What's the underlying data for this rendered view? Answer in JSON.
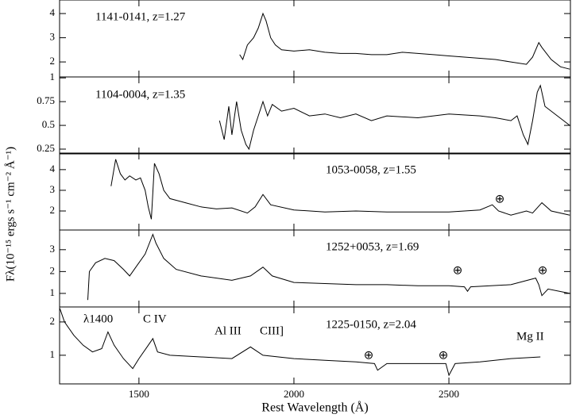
{
  "chart_data": [
    {
      "type": "line",
      "title": "1141-0141, z=1.27",
      "x": [
        1825,
        1835,
        1850,
        1870,
        1885,
        1900,
        1910,
        1925,
        1940,
        1960,
        2000,
        2050,
        2100,
        2150,
        2200,
        2250,
        2300,
        2350,
        2400,
        2450,
        2500,
        2550,
        2600,
        2650,
        2700,
        2750,
        2770,
        2790,
        2800,
        2830,
        2860,
        2890
      ],
      "values": [
        2.3,
        2.1,
        2.7,
        3.0,
        3.4,
        4.0,
        3.7,
        3.0,
        2.7,
        2.5,
        2.45,
        2.5,
        2.4,
        2.35,
        2.35,
        2.3,
        2.3,
        2.4,
        2.35,
        2.3,
        2.25,
        2.2,
        2.15,
        2.1,
        2.0,
        1.9,
        2.2,
        2.8,
        2.6,
        2.1,
        1.8,
        1.7
      ],
      "xlim": [
        1244,
        2892
      ],
      "xticks": [
        1500,
        2000,
        2500
      ],
      "ylim": [
        1.38,
        4.56
      ],
      "yticks": [
        2,
        3,
        4
      ],
      "color": "#000000",
      "annotations": []
    },
    {
      "type": "line",
      "title": "1104-0004, z=1.35",
      "x": [
        1760,
        1775,
        1790,
        1800,
        1815,
        1830,
        1845,
        1855,
        1870,
        1885,
        1900,
        1915,
        1930,
        1960,
        2000,
        2050,
        2100,
        2150,
        2200,
        2250,
        2300,
        2400,
        2500,
        2600,
        2650,
        2700,
        2720,
        2740,
        2755,
        2770,
        2785,
        2795,
        2810,
        2850,
        2890
      ],
      "values": [
        0.55,
        0.35,
        0.7,
        0.4,
        0.75,
        0.45,
        0.3,
        0.25,
        0.45,
        0.6,
        0.75,
        0.6,
        0.72,
        0.65,
        0.68,
        0.6,
        0.62,
        0.58,
        0.62,
        0.55,
        0.6,
        0.58,
        0.62,
        0.6,
        0.58,
        0.55,
        0.6,
        0.4,
        0.3,
        0.55,
        0.85,
        0.92,
        0.7,
        0.6,
        0.5
      ],
      "xlim": [
        1244,
        2892
      ],
      "xticks": [
        1500,
        2000,
        2500
      ],
      "ylim": [
        0.2,
        1.01
      ],
      "yticks": [
        0.25,
        0.5,
        0.75,
        1
      ],
      "color": "#000000",
      "annotations": []
    },
    {
      "type": "line",
      "title": "1053-0058, z=1.55",
      "ylabel": "Fλ(10⁻¹⁵ ergs s⁻¹ cm⁻² Å⁻¹)",
      "x": [
        1410,
        1425,
        1440,
        1455,
        1470,
        1490,
        1505,
        1520,
        1530,
        1540,
        1545,
        1550,
        1565,
        1580,
        1600,
        1650,
        1700,
        1750,
        1800,
        1850,
        1875,
        1900,
        1925,
        2000,
        2100,
        2200,
        2300,
        2400,
        2500,
        2600,
        2640,
        2660,
        2700,
        2750,
        2770,
        2800,
        2830,
        2890
      ],
      "values": [
        3.2,
        4.5,
        3.8,
        3.5,
        3.7,
        3.5,
        3.6,
        3.0,
        2.2,
        1.6,
        2.9,
        4.3,
        3.8,
        3.0,
        2.6,
        2.4,
        2.2,
        2.1,
        2.15,
        1.9,
        2.2,
        2.8,
        2.3,
        2.05,
        1.95,
        2.0,
        1.95,
        1.95,
        1.95,
        2.05,
        2.3,
        2.0,
        1.8,
        2.0,
        1.9,
        2.4,
        2.0,
        1.8
      ],
      "xlim": [
        1244,
        2892
      ],
      "xticks": [
        1500,
        2000,
        2500
      ],
      "ylim": [
        1.08,
        4.8
      ],
      "yticks": [
        2,
        3,
        4
      ],
      "color": "#000000",
      "annotations": [
        "⊕"
      ]
    },
    {
      "type": "line",
      "title": "1252+0053, z=1.69",
      "x": [
        1335,
        1340,
        1360,
        1390,
        1420,
        1450,
        1470,
        1490,
        1520,
        1545,
        1555,
        1580,
        1620,
        1700,
        1800,
        1860,
        1900,
        1930,
        2000,
        2100,
        2200,
        2300,
        2400,
        2500,
        2550,
        2560,
        2570,
        2700,
        2780,
        2790,
        2800,
        2820,
        2890
      ],
      "values": [
        0.7,
        2.0,
        2.4,
        2.6,
        2.5,
        2.1,
        1.8,
        2.2,
        2.8,
        3.7,
        3.3,
        2.6,
        2.1,
        1.8,
        1.6,
        1.8,
        2.2,
        1.8,
        1.5,
        1.45,
        1.4,
        1.4,
        1.35,
        1.35,
        1.3,
        1.1,
        1.3,
        1.4,
        1.7,
        1.4,
        0.9,
        1.2,
        1.0
      ],
      "xlim": [
        1244,
        2892
      ],
      "xticks": [
        1500,
        2000,
        2500
      ],
      "ylim": [
        0.38,
        3.9
      ],
      "yticks": [
        1,
        2,
        3
      ],
      "color": "#000000",
      "annotations": [
        "⊕",
        "⊕"
      ]
    },
    {
      "type": "line",
      "title": "1225-0150, z=2.04",
      "xlabel": "Rest Wavelength (Å)",
      "x": [
        1245,
        1260,
        1290,
        1320,
        1350,
        1380,
        1400,
        1420,
        1450,
        1480,
        1500,
        1530,
        1545,
        1560,
        1600,
        1700,
        1800,
        1860,
        1900,
        2000,
        2100,
        2200,
        2260,
        2270,
        2300,
        2400,
        2490,
        2500,
        2520,
        2600,
        2700,
        2795
      ],
      "values": [
        2.4,
        2.0,
        1.6,
        1.3,
        1.1,
        1.2,
        1.7,
        1.3,
        0.9,
        0.6,
        0.9,
        1.3,
        1.5,
        1.1,
        1.0,
        0.95,
        0.9,
        1.25,
        1.0,
        0.9,
        0.85,
        0.8,
        0.75,
        0.55,
        0.75,
        0.75,
        0.75,
        0.4,
        0.75,
        0.8,
        0.9,
        0.95
      ],
      "xlim": [
        1244,
        2892
      ],
      "xticks": [
        1500,
        2000,
        2500
      ],
      "ylim": [
        0.14,
        2.45
      ],
      "yticks": [
        1,
        2
      ],
      "color": "#000000",
      "annotations": [
        "λ1400",
        "C IV",
        "Al III",
        "CIII]",
        "Mg II",
        "⊕",
        "⊕"
      ]
    }
  ]
}
